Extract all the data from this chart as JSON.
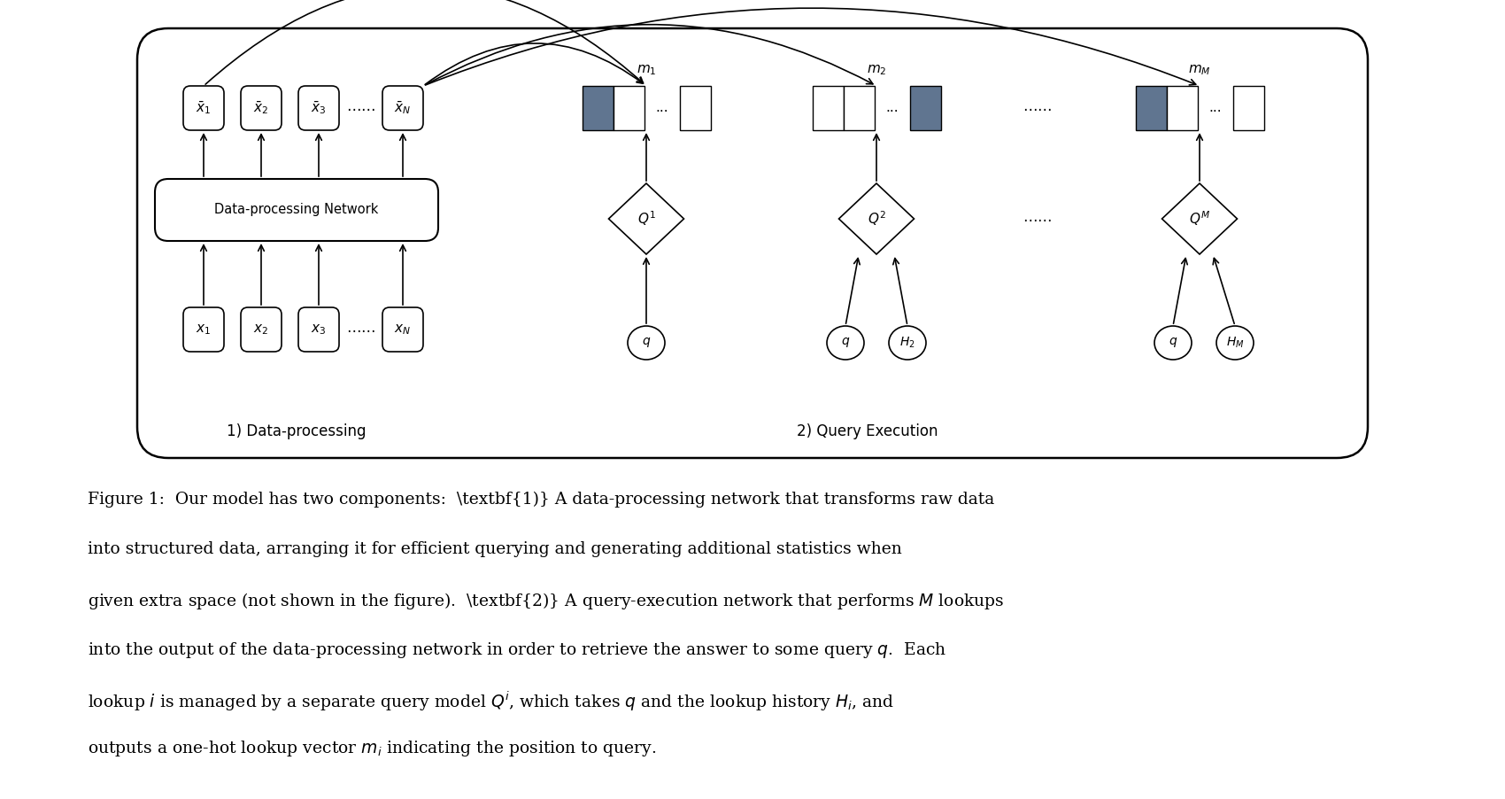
{
  "bg_color": "#ffffff",
  "dark_fill": "#607590",
  "label1": "1) Data-processing",
  "label2": "2) Query Execution",
  "caption_lines": [
    "Figure 1:  Our model has two components:  \\textbf{1)} A data-processing network that transforms raw data",
    "into structured data, arranging it for efficient querying and generating additional statistics when",
    "given extra space (not shown in the figure).  \\textbf{2)} A query-execution network that performs $M$ lookups",
    "into the output of the data-processing network in order to retrieve the answer to some query $q$.  Each",
    "lookup $i$ is managed by a separate query model $Q^i$, which takes $q$ and the lookup history $H_i$, and",
    "outputs a one-hot lookup vector $m_i$ indicating the position to query."
  ]
}
